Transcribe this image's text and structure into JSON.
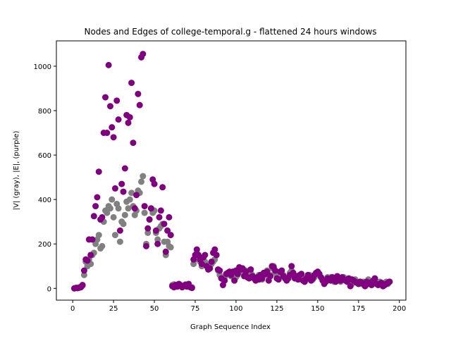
{
  "chart_data": {
    "type": "scatter",
    "title": "Nodes and Edges of college-temporal.g - flattened 24 hours windows",
    "x_label": "Graph Sequence Index",
    "y_label": "|V| (gray), |E|, (purple)",
    "xlim": [
      -10,
      204
    ],
    "ylim": [
      -53,
      1114
    ],
    "xticks": [
      0,
      25,
      50,
      75,
      100,
      125,
      150,
      175,
      200
    ],
    "yticks": [
      0,
      200,
      400,
      600,
      800,
      1000
    ],
    "x": [
      1,
      2,
      3,
      4,
      5,
      6,
      7,
      8,
      9,
      10,
      11,
      12,
      13,
      14,
      15,
      16,
      17,
      18,
      19,
      20,
      21,
      22,
      23,
      24,
      25,
      26,
      27,
      28,
      29,
      30,
      31,
      32,
      33,
      34,
      35,
      36,
      37,
      38,
      39,
      40,
      41,
      42,
      43,
      44,
      45,
      46,
      47,
      48,
      49,
      50,
      51,
      52,
      53,
      54,
      55,
      56,
      57,
      58,
      59,
      60,
      61,
      62,
      63,
      64,
      65,
      66,
      67,
      68,
      69,
      70,
      71,
      72,
      73,
      74,
      75,
      76,
      77,
      78,
      79,
      80,
      81,
      82,
      83,
      84,
      85,
      86,
      87,
      88,
      89,
      90,
      91,
      92,
      93,
      94,
      95,
      96,
      97,
      98,
      99,
      100,
      101,
      102,
      103,
      104,
      105,
      106,
      107,
      108,
      109,
      110,
      111,
      112,
      113,
      114,
      115,
      116,
      117,
      118,
      119,
      120,
      121,
      122,
      123,
      124,
      125,
      126,
      127,
      128,
      129,
      130,
      131,
      132,
      133,
      134,
      135,
      136,
      137,
      138,
      139,
      140,
      141,
      142,
      143,
      144,
      145,
      146,
      147,
      148,
      149,
      150,
      151,
      152,
      153,
      154,
      155,
      156,
      157,
      158,
      159,
      160,
      161,
      162,
      163,
      164,
      165,
      166,
      167,
      168,
      169,
      170,
      171,
      172,
      173,
      174,
      175,
      176,
      177,
      178,
      179,
      180,
      181,
      182,
      183,
      184,
      185,
      186,
      187,
      188,
      189,
      190,
      191,
      192,
      193,
      194
    ],
    "series": [
      {
        "color": "#808080",
        "values": [
          0,
          2,
          3,
          5,
          8,
          12,
          60,
          120,
          100,
          130,
          110,
          150,
          160,
          200,
          220,
          240,
          180,
          190,
          300,
          350,
          340,
          370,
          360,
          400,
          320,
          240,
          380,
          360,
          210,
          300,
          290,
          330,
          390,
          360,
          400,
          430,
          370,
          330,
          350,
          440,
          430,
          480,
          505,
          340,
          200,
          250,
          310,
          360,
          340,
          350,
          250,
          220,
          270,
          280,
          290,
          210,
          150,
          210,
          190,
          185,
          15,
          18,
          12,
          10,
          14,
          16,
          8,
          12,
          18,
          10,
          14,
          6,
          5,
          110,
          130,
          160,
          140,
          120,
          100,
          130,
          120,
          110,
          90,
          100,
          110,
          120,
          130,
          150,
          80,
          60,
          50,
          40,
          50,
          60,
          70,
          60,
          55,
          70,
          40,
          50,
          60,
          80,
          90,
          70,
          60,
          80,
          60,
          50,
          70,
          60,
          50,
          40,
          45,
          60,
          50,
          40,
          60,
          70,
          80,
          50,
          60,
          90,
          100,
          70,
          60,
          50,
          60,
          70,
          60,
          50,
          40,
          50,
          70,
          80,
          60,
          50,
          50,
          40,
          50,
          60,
          40,
          30,
          40,
          50,
          60,
          50,
          40,
          50,
          60,
          70,
          60,
          50,
          40,
          30,
          40,
          50,
          40,
          50,
          40,
          30,
          40,
          50,
          40,
          30,
          40,
          50,
          40,
          30,
          40,
          30,
          20,
          30,
          40,
          30,
          20,
          30,
          20,
          30,
          20,
          30,
          40,
          30,
          20,
          30,
          40,
          30,
          20,
          30,
          20,
          10,
          20,
          30,
          20,
          30
        ]
      },
      {
        "color": "#800080",
        "values": [
          0,
          2,
          1,
          3,
          5,
          15,
          80,
          130,
          125,
          220,
          150,
          220,
          325,
          370,
          410,
          525,
          310,
          320,
          700,
          860,
          700,
          1005,
          820,
          725,
          680,
          450,
          845,
          760,
          260,
          470,
          435,
          540,
          780,
          745,
          770,
          925,
          655,
          360,
          420,
          875,
          825,
          1040,
          1055,
          370,
          190,
          270,
          310,
          360,
          490,
          470,
          260,
          200,
          320,
          350,
          455,
          290,
          165,
          260,
          320,
          240,
          10,
          5,
          15,
          8,
          20,
          12,
          5,
          10,
          15,
          8,
          20,
          5,
          2,
          130,
          150,
          175,
          150,
          130,
          110,
          140,
          150,
          100,
          85,
          90,
          120,
          160,
          175,
          150,
          85,
          80,
          45,
          15,
          35,
          65,
          70,
          75,
          60,
          75,
          35,
          80,
          65,
          95,
          85,
          90,
          55,
          75,
          50,
          45,
          85,
          55,
          45,
          35,
          50,
          40,
          60,
          45,
          70,
          65,
          75,
          35,
          55,
          100,
          95,
          80,
          45,
          40,
          75,
          80,
          55,
          45,
          35,
          45,
          60,
          100,
          70,
          45,
          55,
          40,
          60,
          65,
          35,
          30,
          45,
          60,
          50,
          35,
          45,
          60,
          70,
          75,
          65,
          50,
          35,
          20,
          30,
          45,
          40,
          35,
          50,
          40,
          30,
          55,
          45,
          35,
          50,
          40,
          35,
          30,
          45,
          10,
          40,
          35,
          30,
          25,
          20,
          30,
          25,
          20,
          10,
          30,
          20,
          25,
          15,
          35,
          45,
          20,
          15,
          20,
          25,
          10,
          15,
          20,
          25,
          30
        ]
      }
    ]
  }
}
